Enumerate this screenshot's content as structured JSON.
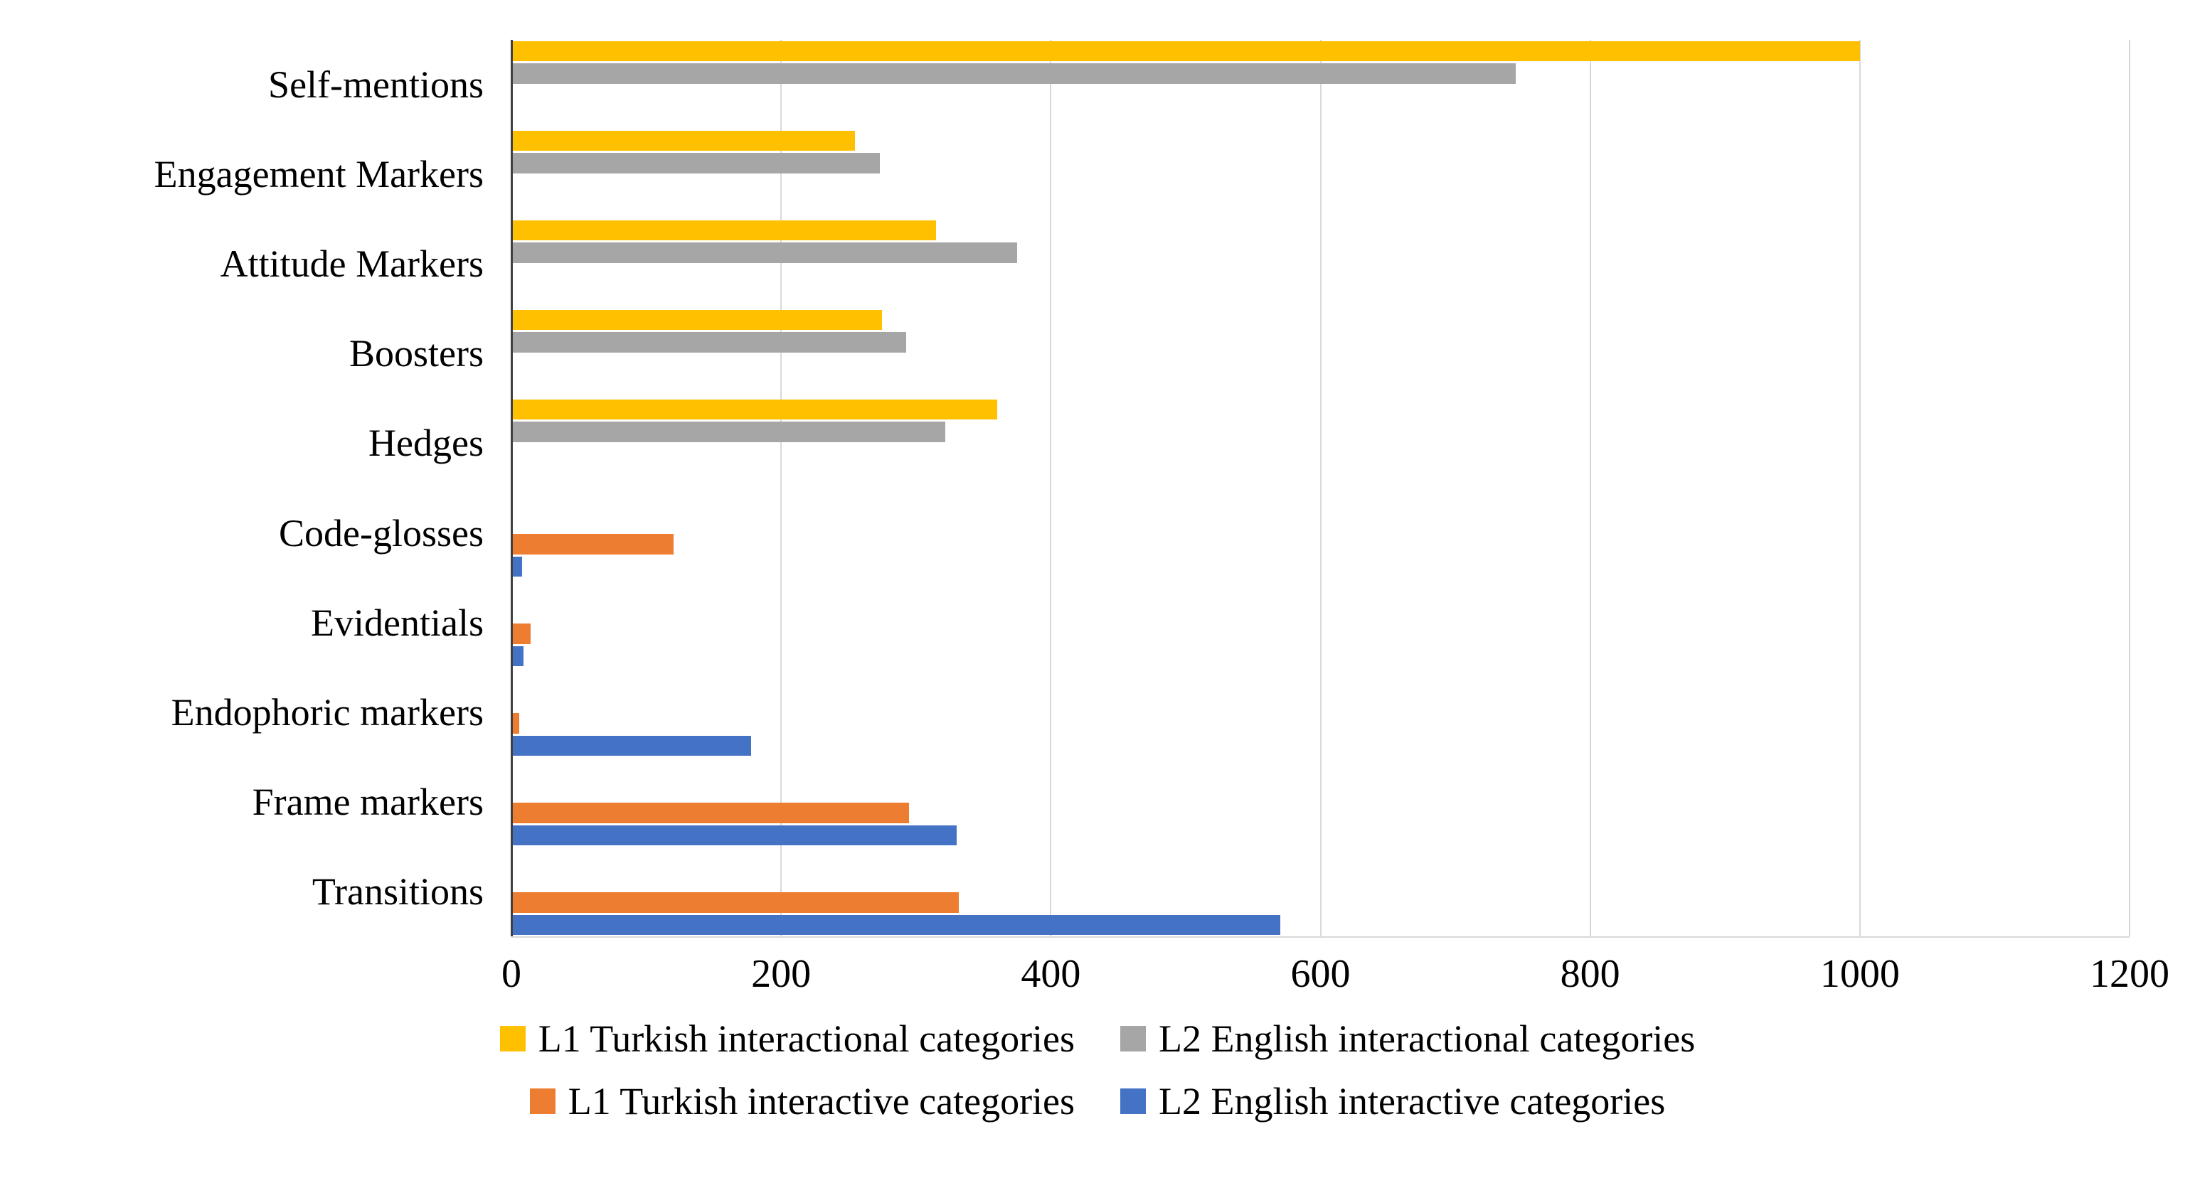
{
  "chart_data": {
    "type": "bar",
    "orientation": "horizontal",
    "title": "",
    "xlabel": "",
    "ylabel": "",
    "xlim": [
      0,
      1200
    ],
    "xticks": [
      0,
      200,
      400,
      600,
      800,
      1000,
      1200
    ],
    "grid": true,
    "legend_position": "bottom",
    "legend_rows": [
      [
        0,
        1
      ],
      [
        2,
        3
      ]
    ],
    "categories": [
      "Self-mentions",
      "Engagement Markers",
      "Attitude Markers",
      "Boosters",
      "Hedges",
      "Code-glosses",
      "Evidentials",
      "Endophoric markers",
      "Frame markers",
      "Transitions"
    ],
    "series": [
      {
        "name": "L1 Turkish interactional categories",
        "color": "#FFC000",
        "values": [
          1000,
          255,
          315,
          275,
          360,
          null,
          null,
          null,
          null,
          null
        ]
      },
      {
        "name": "L2 English interactional categories",
        "color": "#A6A6A6",
        "values": [
          745,
          273,
          375,
          293,
          322,
          null,
          null,
          null,
          null,
          null
        ]
      },
      {
        "name": "L1 Turkish interactive categories",
        "color": "#ED7D31",
        "values": [
          null,
          null,
          null,
          null,
          null,
          120,
          14,
          6,
          295,
          332
        ]
      },
      {
        "name": "L2 English interactive categories",
        "color": "#4472C4",
        "values": [
          null,
          null,
          null,
          null,
          null,
          8,
          9,
          178,
          330,
          570
        ]
      }
    ]
  }
}
